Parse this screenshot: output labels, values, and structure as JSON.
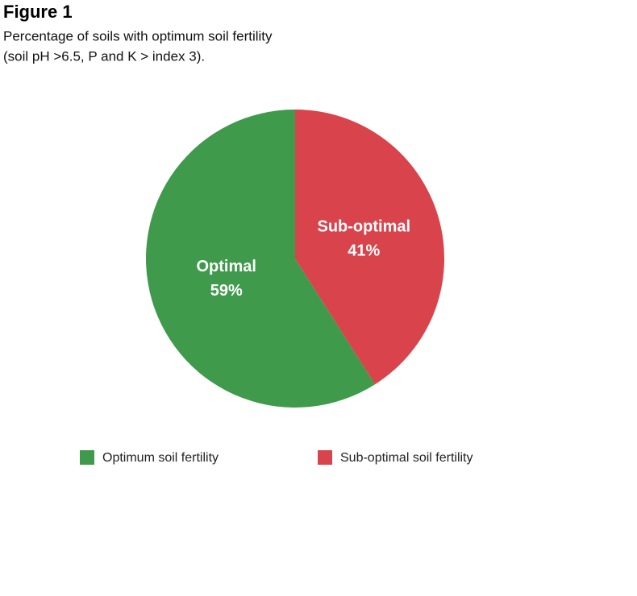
{
  "chart_data": {
    "type": "pie",
    "title": "Figure 1",
    "subtitle": [
      "Percentage of soils with optimum soil fertility",
      "(soil pH >6.5, P and K > index 3)."
    ],
    "categories": [
      "Optimal",
      "Sub-optimal"
    ],
    "values": [
      59,
      41
    ],
    "value_labels": [
      "59%",
      "41%"
    ],
    "series": [
      {
        "name": "Optimum soil fertility",
        "color": "#3f9a4b"
      },
      {
        "name": "Sub-optimal soil fertility",
        "color": "#d9434b"
      }
    ],
    "start_angle": "top",
    "direction": "counterclockwise",
    "legend": "bottom"
  }
}
